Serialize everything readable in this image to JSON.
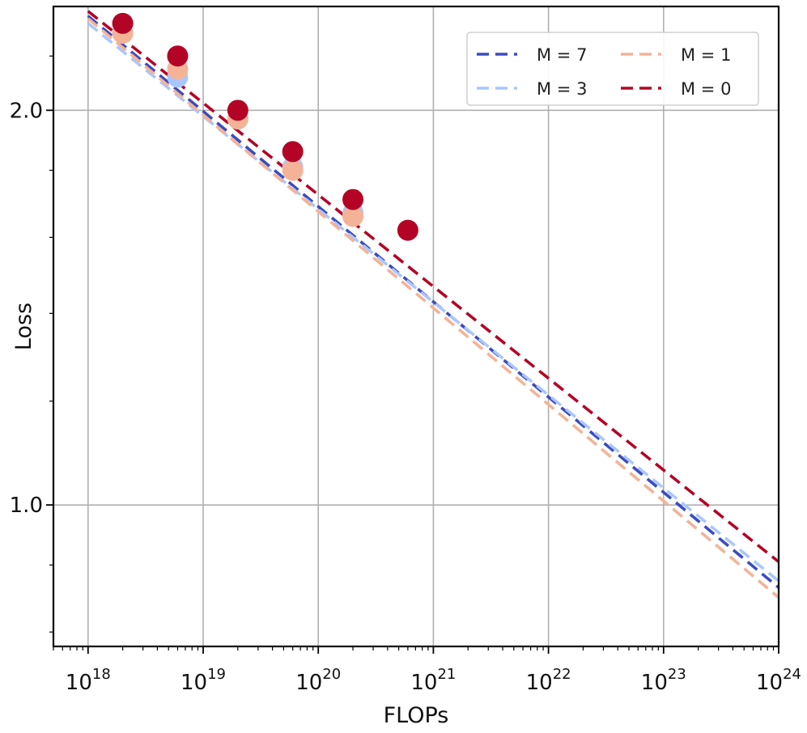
{
  "chart_data": {
    "type": "scatter",
    "title": "",
    "xlabel": "FLOPs",
    "ylabel": "Loss",
    "xscale": "log",
    "yscale": "log",
    "xlim": [
      5e+17,
      1e+24
    ],
    "ylim": [
      0.78,
      2.4
    ],
    "grid": true,
    "legend_position": "top-right",
    "x_ticks": [
      {
        "value": 1e+18,
        "base": "10",
        "exp": "18"
      },
      {
        "value": 1e+19,
        "base": "10",
        "exp": "19"
      },
      {
        "value": 1e+20,
        "base": "10",
        "exp": "20"
      },
      {
        "value": 1e+21,
        "base": "10",
        "exp": "21"
      },
      {
        "value": 1e+22,
        "base": "10",
        "exp": "22"
      },
      {
        "value": 1e+23,
        "base": "10",
        "exp": "23"
      },
      {
        "value": 1e+24,
        "base": "10",
        "exp": "24"
      }
    ],
    "y_ticks": [
      {
        "value": 1.0,
        "label": "1.0"
      },
      {
        "value": 2.0,
        "label": "2.0"
      }
    ],
    "series": [
      {
        "name": "M = 7",
        "color": "#3b4cc0",
        "points": [
          {
            "x": 2e+18,
            "y": 2.3
          },
          {
            "x": 6e+18,
            "y": 2.17
          },
          {
            "x": 2e+19,
            "y": 1.98
          },
          {
            "x": 6e+19,
            "y": 1.84
          },
          {
            "x": 2e+20,
            "y": 1.68
          }
        ],
        "fit": [
          {
            "x": 1e+18,
            "y": 2.36
          },
          {
            "x": 1e+24,
            "y": 0.865
          }
        ]
      },
      {
        "name": "M = 3",
        "color": "#aac7fd",
        "points": [
          {
            "x": 2e+18,
            "y": 2.29
          },
          {
            "x": 6e+18,
            "y": 2.12
          },
          {
            "x": 2e+19,
            "y": 1.97
          },
          {
            "x": 6e+19,
            "y": 1.81
          },
          {
            "x": 2e+20,
            "y": 1.67
          }
        ],
        "fit": [
          {
            "x": 1e+18,
            "y": 2.33
          },
          {
            "x": 1e+24,
            "y": 0.875
          }
        ]
      },
      {
        "name": "M = 1",
        "color": "#f4b397",
        "points": [
          {
            "x": 2e+18,
            "y": 2.29
          },
          {
            "x": 6e+18,
            "y": 2.15
          },
          {
            "x": 2e+19,
            "y": 1.97
          },
          {
            "x": 6e+19,
            "y": 1.8
          },
          {
            "x": 2e+20,
            "y": 1.66
          }
        ],
        "fit": [
          {
            "x": 1e+18,
            "y": 2.35
          },
          {
            "x": 1e+24,
            "y": 0.85
          }
        ]
      },
      {
        "name": "M = 0",
        "color": "#b40426",
        "points": [
          {
            "x": 2e+18,
            "y": 2.33
          },
          {
            "x": 6e+18,
            "y": 2.2
          },
          {
            "x": 2e+19,
            "y": 2.0
          },
          {
            "x": 6e+19,
            "y": 1.86
          },
          {
            "x": 2e+20,
            "y": 1.71
          },
          {
            "x": 6e+20,
            "y": 1.62
          }
        ],
        "fit": [
          {
            "x": 1e+18,
            "y": 2.38
          },
          {
            "x": 1e+24,
            "y": 0.905
          }
        ]
      }
    ],
    "legend_order": [
      "M = 7",
      "M = 1",
      "M = 3",
      "M = 0"
    ]
  }
}
